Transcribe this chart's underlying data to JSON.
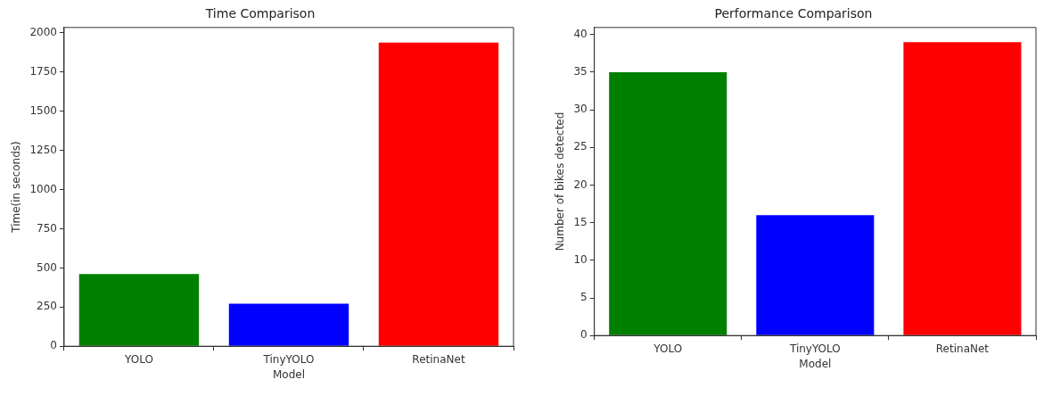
{
  "chart_data": [
    {
      "type": "bar",
      "title": "Time Comparison",
      "xlabel": "Model",
      "ylabel": "Time(in seconds)",
      "categories": [
        "YOLO",
        "TinyYOLO",
        "RetinaNet"
      ],
      "values": [
        461,
        272,
        1938
      ],
      "colors": [
        "#008000",
        "#0000ff",
        "#ff0000"
      ],
      "ylim": [
        0,
        2035
      ],
      "yticks": [
        0,
        250,
        500,
        750,
        1000,
        1250,
        1500,
        1750,
        2000
      ]
    },
    {
      "type": "bar",
      "title": "Performance Comparison",
      "xlabel": "Model",
      "ylabel": "Number of bikes detected",
      "categories": [
        "YOLO",
        "TinyYOLO",
        "RetinaNet"
      ],
      "values": [
        35,
        16,
        39
      ],
      "colors": [
        "#008000",
        "#0000ff",
        "#ff0000"
      ],
      "ylim": [
        0,
        40.95
      ],
      "yticks": [
        0,
        5,
        10,
        15,
        20,
        25,
        30,
        35,
        40
      ]
    }
  ]
}
